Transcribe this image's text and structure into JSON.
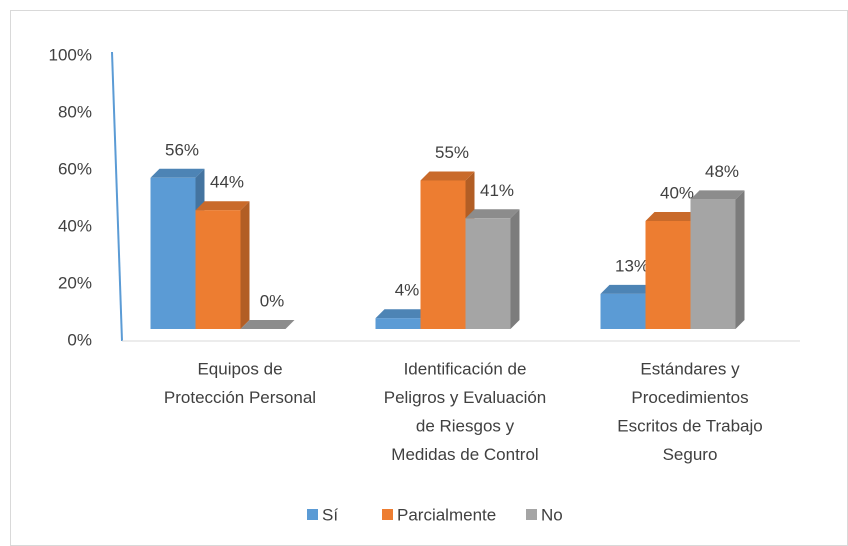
{
  "chart_data": {
    "type": "bar3d",
    "categories": [
      [
        "Equipos de",
        "Protección Personal"
      ],
      [
        "Identificación de",
        "Peligros y Evaluación",
        "de  Riesgos  y",
        "Medidas de Control"
      ],
      [
        "Estándares y",
        "Procedimientos",
        "Escritos de Trabajo",
        "Seguro"
      ]
    ],
    "series": [
      {
        "name": "Sí",
        "color": "#5b9bd5",
        "values": [
          56,
          4,
          13
        ],
        "value_labels": [
          "56%",
          "4%",
          "13%"
        ]
      },
      {
        "name": "Parcialmente",
        "color": "#ed7d31",
        "values": [
          44,
          55,
          40
        ],
        "value_labels": [
          "44%",
          "55%",
          "40%"
        ]
      },
      {
        "name": "No",
        "color": "#a5a5a5",
        "values": [
          0,
          41,
          48
        ],
        "value_labels": [
          "0%",
          "41%",
          "48%"
        ]
      }
    ],
    "ylim": [
      0,
      100
    ],
    "yticks": [
      {
        "value": 0,
        "label": "0%"
      },
      {
        "value": 20,
        "label": "20%"
      },
      {
        "value": 40,
        "label": "40%"
      },
      {
        "value": 60,
        "label": "60%"
      },
      {
        "value": 80,
        "label": "80%"
      },
      {
        "value": 100,
        "label": "100%"
      }
    ],
    "legend": "bottom"
  }
}
